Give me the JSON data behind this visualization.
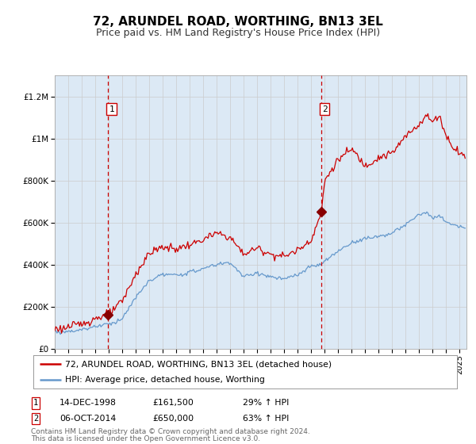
{
  "title": "72, ARUNDEL ROAD, WORTHING, BN13 3EL",
  "subtitle": "Price paid vs. HM Land Registry's House Price Index (HPI)",
  "ylim": [
    0,
    1300000
  ],
  "xlim_start": 1995.0,
  "xlim_end": 2025.5,
  "background_color": "#ffffff",
  "plot_bg_color": "#dce9f5",
  "transaction1": {
    "date_label": "14-DEC-1998",
    "date_x": 1998.958,
    "price": 161500,
    "label": "29% ↑ HPI"
  },
  "transaction2": {
    "date_label": "06-OCT-2014",
    "date_x": 2014.75,
    "price": 650000,
    "label": "63% ↑ HPI"
  },
  "legend_line1": "72, ARUNDEL ROAD, WORTHING, BN13 3EL (detached house)",
  "legend_line2": "HPI: Average price, detached house, Worthing",
  "footer1": "Contains HM Land Registry data © Crown copyright and database right 2024.",
  "footer2": "This data is licensed under the Open Government Licence v3.0.",
  "red_line_color": "#cc0000",
  "blue_line_color": "#6699cc",
  "marker_color": "#880000",
  "vline_color": "#cc0000",
  "title_fontsize": 11,
  "subtitle_fontsize": 9,
  "axis_fontsize": 8,
  "label_fontsize": 8
}
